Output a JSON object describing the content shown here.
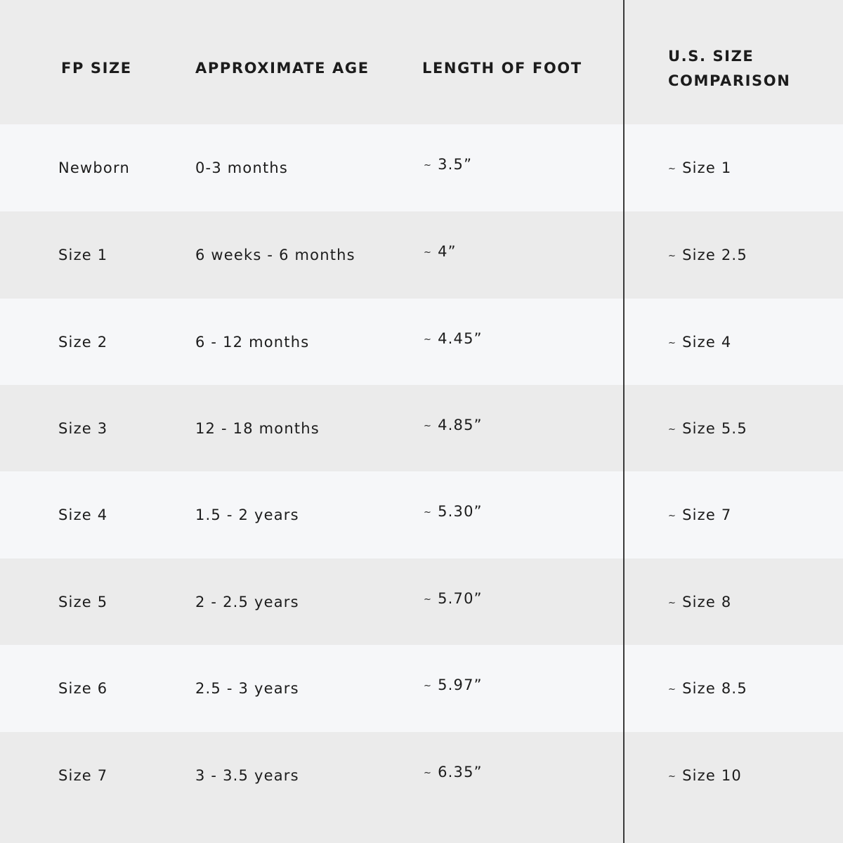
{
  "colors": {
    "header_bg": "#ececec",
    "row_light": "#f6f7f9",
    "row_dark": "#ebebeb",
    "divider": "#3a3a3a",
    "text": "#1c1c1c"
  },
  "headers": {
    "fp_size": "FP SIZE",
    "age": "APPROXIMATE AGE",
    "length": "LENGTH OF FOOT",
    "us_size_line1": "U.S. SIZE",
    "us_size_line2": "COMPARISON"
  },
  "tilde": "~",
  "rows": [
    {
      "fp": "Newborn",
      "age": "0-3 months",
      "length": "3.5”",
      "us": "Size 1"
    },
    {
      "fp": "Size 1",
      "age": "6 weeks - 6 months",
      "length": "4”",
      "us": "Size 2.5"
    },
    {
      "fp": "Size 2",
      "age": "6 - 12 months",
      "length": "4.45”",
      "us": "Size 4"
    },
    {
      "fp": "Size 3",
      "age": "12 - 18 months",
      "length": "4.85”",
      "us": "Size 5.5"
    },
    {
      "fp": "Size 4",
      "age": "1.5 - 2 years",
      "length": "5.30”",
      "us": "Size 7"
    },
    {
      "fp": "Size 5",
      "age": "2 - 2.5 years",
      "length": "5.70”",
      "us": "Size 8"
    },
    {
      "fp": "Size 6",
      "age": "2.5 - 3 years",
      "length": "5.97”",
      "us": "Size 8.5"
    },
    {
      "fp": "Size 7",
      "age": "3 - 3.5 years",
      "length": "6.35”",
      "us": "Size 10"
    }
  ]
}
